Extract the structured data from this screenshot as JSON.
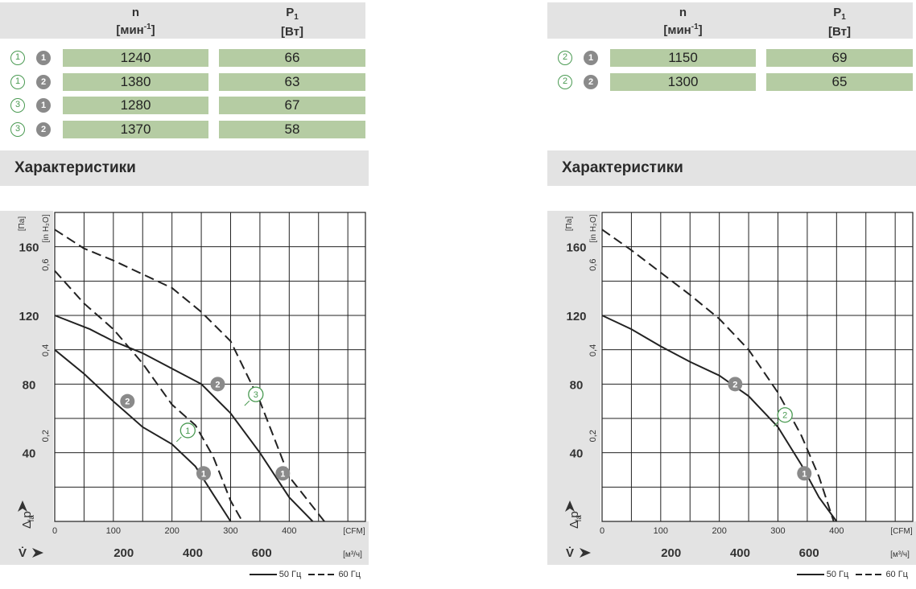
{
  "left": {
    "table": {
      "header_n": "n",
      "header_n_unit": "[мин",
      "header_n_unit_sup": "-1",
      "header_n_unit_end": "]",
      "header_p": "P",
      "header_p_sub": "1",
      "header_p_unit": "[Вт]",
      "rows": [
        {
          "mark_outline": "1",
          "mark_filled": "1",
          "n": "1240",
          "p": "66"
        },
        {
          "mark_outline": "1",
          "mark_filled": "2",
          "n": "1380",
          "p": "63"
        },
        {
          "mark_outline": "3",
          "mark_filled": "1",
          "n": "1280",
          "p": "67"
        },
        {
          "mark_outline": "3",
          "mark_filled": "2",
          "n": "1370",
          "p": "58"
        }
      ]
    },
    "section_title": "Характеристики"
  },
  "right": {
    "table": {
      "header_n": "n",
      "header_n_unit": "[мин",
      "header_n_unit_sup": "-1",
      "header_n_unit_end": "]",
      "header_p": "P",
      "header_p_sub": "1",
      "header_p_unit": "[Вт]",
      "rows": [
        {
          "mark_outline": "2",
          "mark_filled": "1",
          "n": "1150",
          "p": "69"
        },
        {
          "mark_outline": "2",
          "mark_filled": "2",
          "n": "1300",
          "p": "65"
        }
      ]
    },
    "section_title": "Характеристики"
  },
  "legend": {
    "solid": "50 Гц",
    "dashed": "60 Гц"
  },
  "colors": {
    "table_fill": "#b5cca3",
    "header_fill": "#e3e3e3",
    "axis_fill": "#e3e3e3",
    "curve": "#222222",
    "green_marker": "#4a9a52",
    "grey_marker": "#8a8a8a"
  },
  "chart_data": [
    {
      "type": "line",
      "x_unit_top": "[CFM]",
      "x_unit_bottom": "[м³/ч]",
      "y_unit_left": "[Па]",
      "y_unit_right": "[in H₂O]",
      "y_axis_label": "Δ p",
      "y_axis_label_sub": "fa",
      "x_axis_label": "V̇",
      "xlim_cfm": [
        0,
        530
      ],
      "ylim_pa": [
        0,
        180
      ],
      "x_ticks_cfm": [
        "0",
        "100",
        "200",
        "300",
        "400"
      ],
      "x_ticks_m3h": [
        "200",
        "400",
        "600"
      ],
      "y_ticks_pa": [
        "40",
        "80",
        "120",
        "160"
      ],
      "y_ticks_inh2o": [
        "0,2",
        "0,4",
        "0,6"
      ],
      "grid": true,
      "series": [
        {
          "marker": "2",
          "style": "solid",
          "points": [
            [
              0,
              120
            ],
            [
              60,
              112
            ],
            [
              100,
              105
            ],
            [
              150,
              98
            ],
            [
              200,
              89
            ],
            [
              250,
              80
            ],
            [
              300,
              63
            ],
            [
              350,
              40
            ],
            [
              400,
              14
            ],
            [
              440,
              0
            ]
          ]
        },
        {
          "marker": "1",
          "style": "solid",
          "points": [
            [
              0,
              100
            ],
            [
              50,
              86
            ],
            [
              100,
              70
            ],
            [
              150,
              55
            ],
            [
              200,
              45
            ],
            [
              240,
              32
            ],
            [
              270,
              16
            ],
            [
              300,
              0
            ]
          ]
        },
        {
          "marker": "3",
          "style": "dashed",
          "points": [
            [
              0,
              170
            ],
            [
              50,
              159
            ],
            [
              100,
              152
            ],
            [
              150,
              144
            ],
            [
              200,
              136
            ],
            [
              250,
              122
            ],
            [
              300,
              105
            ],
            [
              350,
              70
            ],
            [
              400,
              26
            ],
            [
              460,
              0
            ]
          ]
        },
        {
          "marker": "1",
          "style": "dashed",
          "points": [
            [
              0,
              146
            ],
            [
              50,
              127
            ],
            [
              100,
              112
            ],
            [
              150,
              92
            ],
            [
              200,
              68
            ],
            [
              240,
              56
            ],
            [
              270,
              38
            ],
            [
              300,
              12
            ],
            [
              320,
              0
            ]
          ]
        }
      ],
      "curve_markers": [
        {
          "label": "2",
          "kind": "filled",
          "x": 278,
          "y": 80
        },
        {
          "label": "2",
          "kind": "filled",
          "x": 124,
          "y": 70
        },
        {
          "label": "1",
          "kind": "filled",
          "x": 254,
          "y": 28
        },
        {
          "label": "1",
          "kind": "filled",
          "x": 389,
          "y": 28
        },
        {
          "label": "3",
          "kind": "outline",
          "x": 343,
          "y": 74
        },
        {
          "label": "1",
          "kind": "outline",
          "x": 227,
          "y": 53
        }
      ]
    },
    {
      "type": "line",
      "x_unit_top": "[CFM]",
      "x_unit_bottom": "[м³/ч]",
      "y_unit_left": "[Па]",
      "y_unit_right": "[in H₂O]",
      "y_axis_label": "Δ p",
      "y_axis_label_sub": "fa",
      "x_axis_label": "V̇",
      "xlim_cfm": [
        0,
        530
      ],
      "ylim_pa": [
        0,
        180
      ],
      "x_ticks_cfm": [
        "0",
        "100",
        "200",
        "300",
        "400"
      ],
      "x_ticks_m3h": [
        "200",
        "400",
        "600"
      ],
      "y_ticks_pa": [
        "40",
        "80",
        "120",
        "160"
      ],
      "y_ticks_inh2o": [
        "0,2",
        "0,4",
        "0,6"
      ],
      "grid": true,
      "series": [
        {
          "marker": "1",
          "style": "solid",
          "points": [
            [
              0,
              120
            ],
            [
              50,
              112
            ],
            [
              100,
              102
            ],
            [
              150,
              93
            ],
            [
              200,
              85
            ],
            [
              250,
              73
            ],
            [
              300,
              55
            ],
            [
              340,
              33
            ],
            [
              370,
              14
            ],
            [
              400,
              0
            ]
          ]
        },
        {
          "marker": "2",
          "style": "dashed",
          "points": [
            [
              0,
              170
            ],
            [
              50,
              158
            ],
            [
              100,
              145
            ],
            [
              150,
              132
            ],
            [
              200,
              118
            ],
            [
              250,
              100
            ],
            [
              300,
              75
            ],
            [
              340,
              50
            ],
            [
              370,
              26
            ],
            [
              395,
              0
            ]
          ]
        }
      ],
      "curve_markers": [
        {
          "label": "2",
          "kind": "filled",
          "x": 227,
          "y": 80
        },
        {
          "label": "1",
          "kind": "filled",
          "x": 345,
          "y": 28
        },
        {
          "label": "2",
          "kind": "outline",
          "x": 312,
          "y": 62
        }
      ]
    }
  ]
}
